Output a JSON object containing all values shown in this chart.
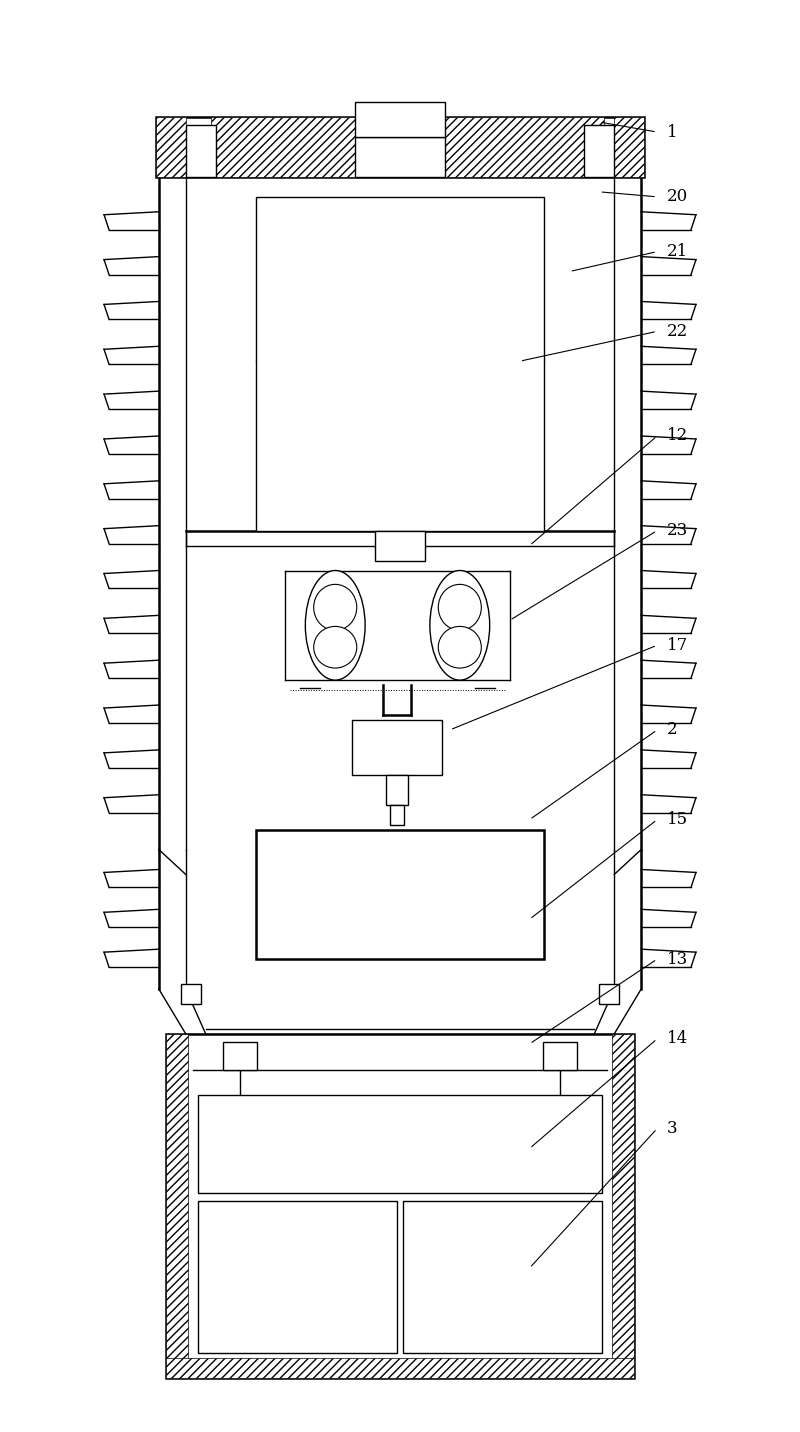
{
  "bg_color": "#ffffff",
  "line_color": "#000000",
  "fig_width": 8.0,
  "fig_height": 14.32,
  "lw": 1.0,
  "lw_thick": 1.8
}
